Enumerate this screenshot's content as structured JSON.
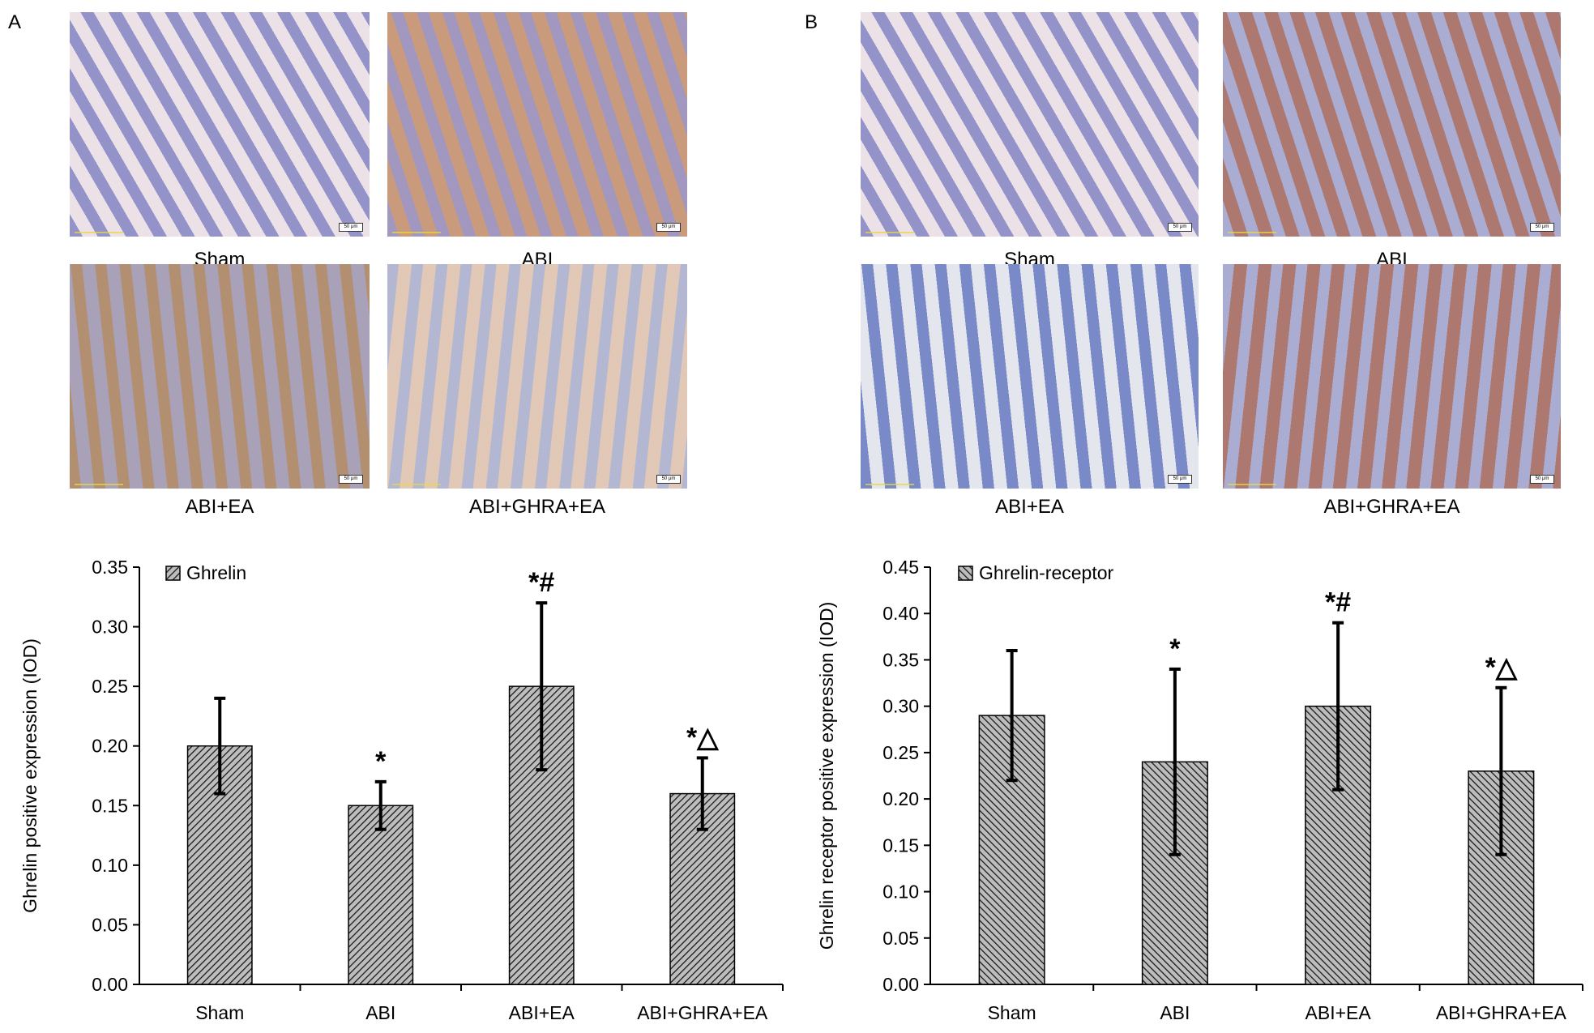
{
  "panels": [
    {
      "letter": "A",
      "images": [
        {
          "label": "Sham",
          "scale": "50 μm",
          "style": "blue-stain"
        },
        {
          "label": "ABI",
          "scale": "50 μm",
          "style": "edge-brown"
        },
        {
          "label": "ABI+EA",
          "scale": "50 μm",
          "style": "brown-heavy"
        },
        {
          "label": "ABI+GHRA+EA",
          "scale": "50 μm",
          "style": "blue-light"
        }
      ]
    },
    {
      "letter": "B",
      "images": [
        {
          "label": "Sham",
          "scale": "50 μm",
          "style": "blue-stain"
        },
        {
          "label": "ABI",
          "scale": "50 μm",
          "style": "brown-stripes"
        },
        {
          "label": "ABI+EA",
          "scale": "50 μm",
          "style": "blue-crypts"
        },
        {
          "label": "ABI+GHRA+EA",
          "scale": "50 μm",
          "style": "brown-stripes"
        }
      ]
    }
  ],
  "colors": {
    "bar_fill": "#9a9a9a",
    "hatch": "#1a1a1a",
    "axis": "#000000"
  },
  "chart_data": [
    {
      "type": "bar",
      "categories": [
        "Sham",
        "ABI",
        "ABI+EA",
        "ABI+GHRA+EA"
      ],
      "series": [
        {
          "name": "Ghrelin",
          "values": [
            0.2,
            0.15,
            0.25,
            0.16
          ],
          "errors": [
            0.04,
            0.02,
            0.07,
            0.03
          ]
        }
      ],
      "annotations": [
        "",
        "*",
        "*#",
        "*△"
      ],
      "ylabel": "Ghrelin positive expression (IOD)",
      "xlabel": "",
      "ylim": [
        0,
        0.35
      ],
      "yticks": [
        "0.00",
        "0.05",
        "0.10",
        "0.15",
        "0.20",
        "0.25",
        "0.30",
        "0.35"
      ],
      "hatch": "diagonal-right",
      "legend": "top-left"
    },
    {
      "type": "bar",
      "categories": [
        "Sham",
        "ABI",
        "ABI+EA",
        "ABI+GHRA+EA"
      ],
      "series": [
        {
          "name": "Ghrelin-receptor",
          "values": [
            0.29,
            0.24,
            0.3,
            0.23
          ],
          "errors": [
            0.07,
            0.1,
            0.09,
            0.09
          ]
        }
      ],
      "annotations": [
        "",
        "*",
        "*#",
        "*△"
      ],
      "ylabel": "Ghrelin receptor positive expression (IOD)",
      "xlabel": "",
      "ylim": [
        0,
        0.45
      ],
      "yticks": [
        "0.00",
        "0.05",
        "0.10",
        "0.15",
        "0.20",
        "0.25",
        "0.30",
        "0.35",
        "0.40",
        "0.45"
      ],
      "hatch": "diagonal-left",
      "legend": "top-left"
    }
  ]
}
